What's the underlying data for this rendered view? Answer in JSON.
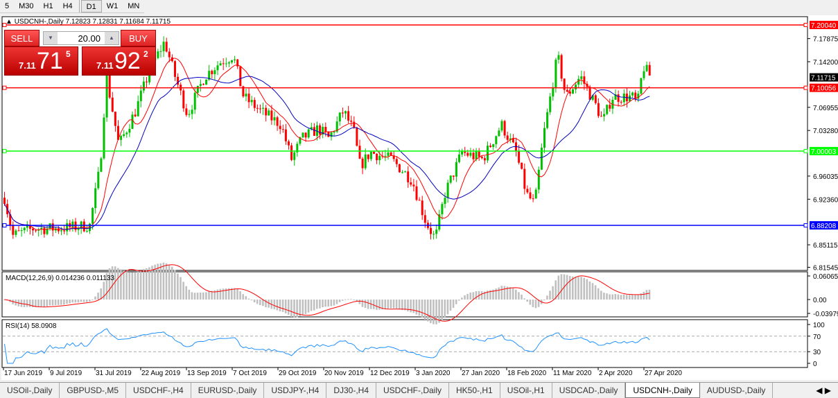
{
  "timeframes": [
    {
      "label": "5"
    },
    {
      "label": "M30"
    },
    {
      "label": "H1"
    },
    {
      "label": "H4"
    },
    {
      "label": "D1",
      "active": true
    },
    {
      "label": "W1"
    },
    {
      "label": "MN"
    }
  ],
  "chart": {
    "symbol_title": "USDCNH-,Daily  7.12823 7.12831 7.11684 7.11715",
    "trade_panel": {
      "sell_label": "SELL",
      "buy_label": "BUY",
      "lot": "20.00",
      "sell_small": "7.11",
      "sell_big": "71",
      "sell_pip": "5",
      "buy_small": "7.11",
      "buy_big": "92",
      "buy_pip": "2"
    },
    "price_axis": {
      "max": 7.2004,
      "min": 6.8154,
      "ticks": [
        "7.17875",
        "7.14200",
        "7.06955",
        "7.03280",
        "6.96035",
        "6.92360",
        "6.85115",
        "6.81545"
      ]
    },
    "current_price": "7.11715",
    "hlines": [
      {
        "price": 7.2004,
        "label": "7.20040",
        "color": "#ff0000"
      },
      {
        "price": 7.10056,
        "label": "7.10056",
        "color": "#ff0000"
      },
      {
        "price": 7.00003,
        "label": "7.00003",
        "color": "#00ff00"
      },
      {
        "price": 6.88208,
        "label": "6.88208",
        "color": "#0000ff"
      }
    ],
    "date_labels": [
      {
        "d": "2019-06-17",
        "label": "17 Jun 2019"
      },
      {
        "d": "2019-07-09",
        "label": "9 Jul 2019"
      },
      {
        "d": "2019-07-31",
        "label": "31 Jul 2019"
      },
      {
        "d": "2019-08-22",
        "label": "22 Aug 2019"
      },
      {
        "d": "2019-09-13",
        "label": "13 Sep 2019"
      },
      {
        "d": "2019-10-07",
        "label": "7 Oct 2019"
      },
      {
        "d": "2019-10-29",
        "label": "29 Oct 2019"
      },
      {
        "d": "2019-11-20",
        "label": "20 Nov 2019"
      },
      {
        "d": "2019-12-12",
        "label": "12 Dec 2019"
      },
      {
        "d": "2020-01-03",
        "label": "3 Jan 2020"
      },
      {
        "d": "2020-01-27",
        "label": "27 Jan 2020"
      },
      {
        "d": "2020-02-18",
        "label": "18 Feb 2020"
      },
      {
        "d": "2020-03-11",
        "label": "11 Mar 2020"
      },
      {
        "d": "2020-04-02",
        "label": "2 Apr 2020"
      },
      {
        "d": "2020-04-27",
        "label": "27 Apr 2020"
      }
    ],
    "price_path": [
      [
        "2019-06-17",
        6.926
      ],
      [
        "2019-06-21",
        6.866
      ],
      [
        "2019-07-01",
        6.877
      ],
      [
        "2019-07-13",
        6.877
      ],
      [
        "2019-07-28",
        6.882
      ],
      [
        "2019-08-02",
        6.976
      ],
      [
        "2019-08-05",
        7.119
      ],
      [
        "2019-08-11",
        7.009
      ],
      [
        "2019-08-19",
        7.064
      ],
      [
        "2019-08-26",
        7.13
      ],
      [
        "2019-09-02",
        7.174
      ],
      [
        "2019-09-07",
        7.119
      ],
      [
        "2019-09-13",
        7.058
      ],
      [
        "2019-09-22",
        7.119
      ],
      [
        "2019-09-30",
        7.141
      ],
      [
        "2019-10-07",
        7.152
      ],
      [
        "2019-10-12",
        7.086
      ],
      [
        "2019-10-20",
        7.064
      ],
      [
        "2019-10-30",
        7.042
      ],
      [
        "2019-11-04",
        6.987
      ],
      [
        "2019-11-09",
        7.02
      ],
      [
        "2019-11-17",
        7.036
      ],
      [
        "2019-11-22",
        7.02
      ],
      [
        "2019-11-29",
        7.064
      ],
      [
        "2019-12-04",
        7.031
      ],
      [
        "2019-12-07",
        6.976
      ],
      [
        "2019-12-12",
        6.998
      ],
      [
        "2019-12-22",
        6.987
      ],
      [
        "2020-01-01",
        6.954
      ],
      [
        "2020-01-08",
        6.888
      ],
      [
        "2020-01-13",
        6.86
      ],
      [
        "2020-01-18",
        6.932
      ],
      [
        "2020-01-27",
        6.998
      ],
      [
        "2020-02-06",
        6.987
      ],
      [
        "2020-02-15",
        7.042
      ],
      [
        "2020-02-22",
        6.998
      ],
      [
        "2020-02-27",
        6.932
      ],
      [
        "2020-03-02",
        6.915
      ],
      [
        "2020-03-06",
        7.02
      ],
      [
        "2020-03-13",
        7.152
      ],
      [
        "2020-03-17",
        7.086
      ],
      [
        "2020-03-24",
        7.119
      ],
      [
        "2020-03-31",
        7.075
      ],
      [
        "2020-04-04",
        7.047
      ],
      [
        "2020-04-09",
        7.086
      ],
      [
        "2020-04-20",
        7.086
      ],
      [
        "2020-04-23",
        7.075
      ],
      [
        "2020-04-26",
        7.135
      ],
      [
        "2020-04-30",
        7.117
      ]
    ],
    "colors": {
      "bull": "#00c000",
      "bear": "#ff0000",
      "ma_fast": "#ff0000",
      "ma_slow": "#0000c0"
    },
    "macd": {
      "label": "MACD(12,26,9) 0.014236 0.011133",
      "ticks": [
        "0.060657",
        "0.00",
        "-0.039792"
      ]
    },
    "rsi": {
      "label": "RSI(14) 58.0908",
      "ticks": [
        "100",
        "70",
        "30",
        "0"
      ]
    }
  },
  "tabs": [
    {
      "label": "USOil-,Daily"
    },
    {
      "label": "GBPUSD-,M5"
    },
    {
      "label": "USDCHF-,H4"
    },
    {
      "label": "EURUSD-,Daily"
    },
    {
      "label": "USDJPY-,H4"
    },
    {
      "label": "DJ30-,H4"
    },
    {
      "label": "USDCHF-,Daily"
    },
    {
      "label": "HK50-,H1"
    },
    {
      "label": "USOil-,H1"
    },
    {
      "label": "USDCAD-,Daily"
    },
    {
      "label": "USDCNH-,Daily",
      "active": true
    },
    {
      "label": "AUDUSD-,Daily"
    }
  ],
  "tab_arrows": "◀ ▶"
}
